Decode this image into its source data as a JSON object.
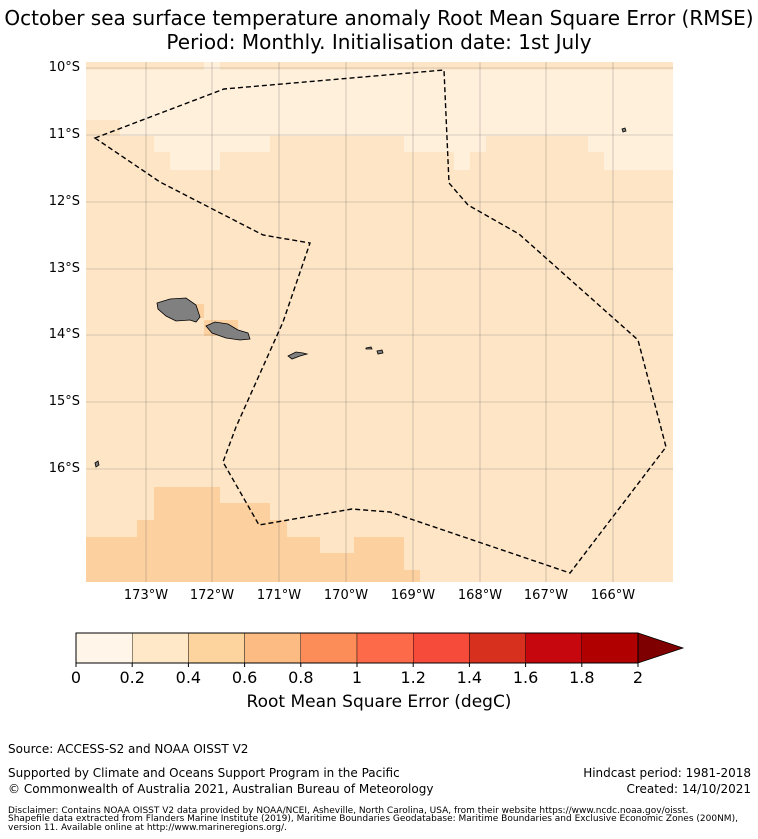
{
  "title": {
    "line1": "October sea surface temperature anomaly Root Mean Square Error (RMSE)",
    "line2": "Period: Monthly. Initialisation date: 1st July"
  },
  "map": {
    "lat_labels": [
      "10°S",
      "11°S",
      "12°S",
      "13°S",
      "14°S",
      "15°S",
      "16°S"
    ],
    "lon_labels": [
      "173°W",
      "172°W",
      "171°W",
      "170°W",
      "169°W",
      "168°W",
      "167°W",
      "166°W"
    ],
    "field_colors": [
      "#fff0dc",
      "#fee5c6",
      "#fdd09f"
    ],
    "land_color": "#808080",
    "boundary_style": "dashed"
  },
  "colorbar": {
    "ticks": [
      "0",
      "0.2",
      "0.4",
      "0.6",
      "0.8",
      "1",
      "1.2",
      "1.4",
      "1.6",
      "1.8",
      "2"
    ],
    "colors": [
      "#fff5e8",
      "#fee8c8",
      "#fdd49e",
      "#fdbb84",
      "#fc8d59",
      "#fc6a4a",
      "#f64a3a",
      "#d7301f",
      "#c6080e",
      "#b00000",
      "#7f0000"
    ],
    "label": "Root Mean Square Error (degC)"
  },
  "footer": {
    "source": "Source: ACCESS-S2 and NOAA OISST V2",
    "support": "Supported by Climate and Oceans Support Program in the Pacific",
    "copyright": "© Commonwealth of Australia 2021, Australian Bureau of Meteorology",
    "hindcast": "Hindcast period: 1981-2018",
    "created": "Created: 14/10/2021",
    "disclaimer1": "Disclaimer: Contains NOAA OISST V2 data provided by NOAA/NCEI, Asheville, North Carolina, USA, from their website https://www.ncdc.noaa.gov/oisst.",
    "disclaimer2": "Shapefile data extracted from Flanders Marine Institute (2019), Maritime Boundaries Geodatabase: Maritime Boundaries and Exclusive Economic Zones (200NM),",
    "disclaimer3": "version 11. Available online at http://www.marineregions.org/."
  }
}
